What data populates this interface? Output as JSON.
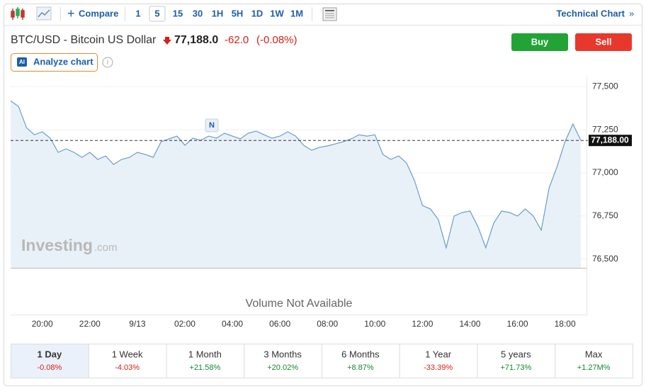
{
  "toolbar": {
    "compare": "Compare",
    "intervals": [
      "1",
      "5",
      "15",
      "30",
      "1H",
      "5H",
      "1D",
      "1W",
      "1M"
    ],
    "selected_index": 1,
    "technical": "Technical Chart"
  },
  "header": {
    "name": "BTC/USD - Bitcoin US Dollar",
    "price": "77,188.0",
    "change": "-62.0",
    "change_pct": "(-0.08%)",
    "buy": "Buy",
    "sell": "Sell",
    "analyze": "Analyze chart",
    "ai": "AI"
  },
  "chart_data": {
    "type": "line",
    "color": "#6a9ccc",
    "categories": [
      null,
      null,
      null,
      null,
      "20:00",
      null,
      null,
      null,
      null,
      null,
      "22:00",
      null,
      null,
      null,
      null,
      null,
      "9/13",
      null,
      null,
      null,
      null,
      null,
      "02:00",
      null,
      null,
      null,
      null,
      null,
      "04:00",
      null,
      null,
      null,
      null,
      null,
      "06:00",
      null,
      null,
      null,
      null,
      null,
      "08:00",
      null,
      null,
      null,
      null,
      null,
      "10:00",
      null,
      null,
      null,
      null,
      null,
      "12:00",
      null,
      null,
      null,
      null,
      null,
      "14:00",
      null,
      null,
      null,
      null,
      null,
      "16:00",
      null,
      null,
      null,
      null,
      null,
      "18:00",
      null,
      null
    ],
    "values": [
      77418,
      77385,
      77262,
      77221,
      77238,
      77201,
      77119,
      77139,
      77119,
      77090,
      77119,
      77078,
      77098,
      77049,
      77078,
      77090,
      77119,
      77107,
      77090,
      77180,
      77197,
      77213,
      77160,
      77201,
      77189,
      77213,
      77201,
      77230,
      77213,
      77197,
      77230,
      77242,
      77221,
      77201,
      77213,
      77238,
      77213,
      77160,
      77131,
      77148,
      77156,
      77168,
      77180,
      77197,
      77221,
      77213,
      77221,
      77107,
      77078,
      77098,
      77057,
      76955,
      76811,
      76791,
      76730,
      76566,
      76750,
      76770,
      76779,
      76689,
      76566,
      76709,
      76779,
      76770,
      76750,
      76791,
      76750,
      76668,
      76914,
      77037,
      77180,
      77283,
      77189
    ],
    "ylim": [
      76450,
      77550
    ],
    "yticks": [
      {
        "value": 76500,
        "label": "76,500"
      },
      {
        "value": 76750,
        "label": "76,750"
      },
      {
        "value": 77000,
        "label": "77,000"
      },
      {
        "value": 77250,
        "label": "77,250"
      },
      {
        "value": 77500,
        "label": "77,500"
      }
    ],
    "last_price": {
      "value": 77188,
      "label": "77,188.00"
    },
    "grid": true,
    "marker": "N",
    "watermark": "Investing",
    "watermark_suffix": ".com",
    "volume_note": "Volume Not Available"
  },
  "periods": [
    {
      "name": "1 Day",
      "change": "-0.08%"
    },
    {
      "name": "1 Week",
      "change": "-4.03%"
    },
    {
      "name": "1 Month",
      "change": "+21.58%"
    },
    {
      "name": "3 Months",
      "change": "+20.02%"
    },
    {
      "name": "6 Months",
      "change": "+8.87%"
    },
    {
      "name": "1 Year",
      "change": "-33.39%"
    },
    {
      "name": "5 years",
      "change": "+71.73%"
    },
    {
      "name": "Max",
      "change": "+1.27M%"
    }
  ],
  "selected_period": 0
}
